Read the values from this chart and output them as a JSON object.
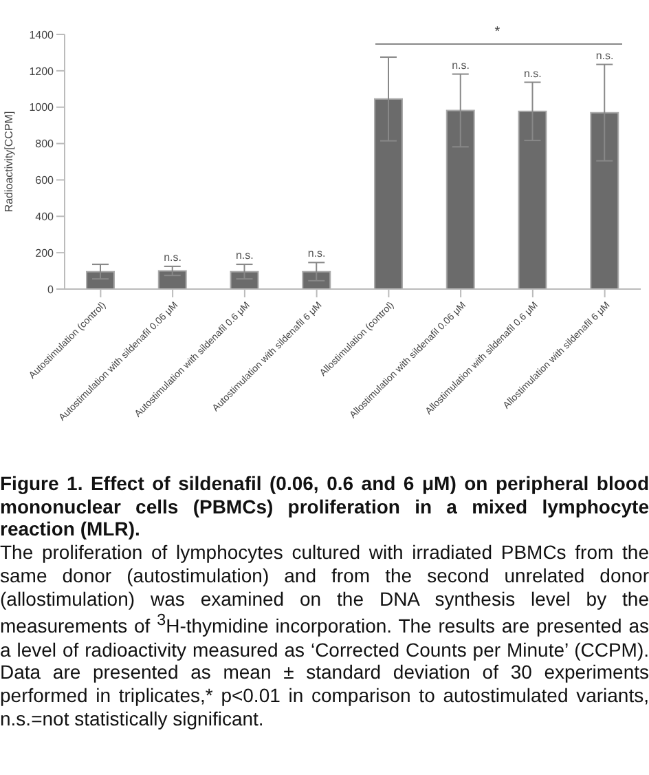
{
  "chart_data": {
    "type": "bar",
    "title": "Figure 1. Effect of sildenafil (0.06, 0.6 and 6 μM) on peripheral blood mononuclear cells (PBMCs) proliferation in a mixed lymphocyte reaction (MLR).",
    "ylabel": "Radioactivity[CCPM]",
    "categories": [
      "Autostimulation (control)",
      "Autostimulation with sildenafil 0.06 μM",
      "Autostimulation with sildenafil 0.6 μM",
      "Autostimulation with sildenafil 6 μM",
      "Allostimulation (control)",
      "Allostimulation with sildenafil 0.06 μM",
      "Allostimulation with sildenafil 0.6 μM",
      "Allostimulation with sildenafil 6 μM"
    ],
    "values": [
      96,
      100,
      96,
      96,
      1045,
      982,
      977,
      970
    ],
    "errors": [
      40,
      25,
      40,
      50,
      230,
      200,
      160,
      265
    ],
    "color": "#6b6b6b",
    "ylim": [
      0,
      1400
    ],
    "yticks": [
      0,
      200,
      400,
      600,
      800,
      1000,
      1200,
      1400
    ],
    "annotations": [
      {
        "text": "n.s.",
        "x": "Autostimulation with sildenafil 0.06 μM",
        "y": 125
      },
      {
        "text": "n.s.",
        "x": "Autostimulation with sildenafil 0.6 μM",
        "y": 136
      },
      {
        "text": "n.s.",
        "x": "Autostimulation with sildenafil 6 μM",
        "y": 146
      },
      {
        "text": "n.s.",
        "x": "Allostimulation with sildenafil 0.06 μM",
        "y": 1182
      },
      {
        "text": "n.s.",
        "x": "Allostimulation with sildenafil 0.6 μM",
        "y": 1137
      },
      {
        "text": "n.s.",
        "x": "Allostimulation with sildenafil 6 μM",
        "y": 1235
      },
      "*",
      "The proliferation of lymphocytes cultured with irradiated PBMCs from the same donor (autostimulation) and from the second unrelated donor (allostimulation) was examined on the DNA synthesis level by the measurements of $^{3}$H-thymidine incorporation. The results are presented as a level of radioactivity measured as ‘Corrected Counts per Minute’ (CCPM). Data are presented as mean ± standard deviation of 30 experiments performed in triplicates,* p<0.01 in comparison to autostimulated variants, n.s.=not statistically significant."
    ]
  }
}
